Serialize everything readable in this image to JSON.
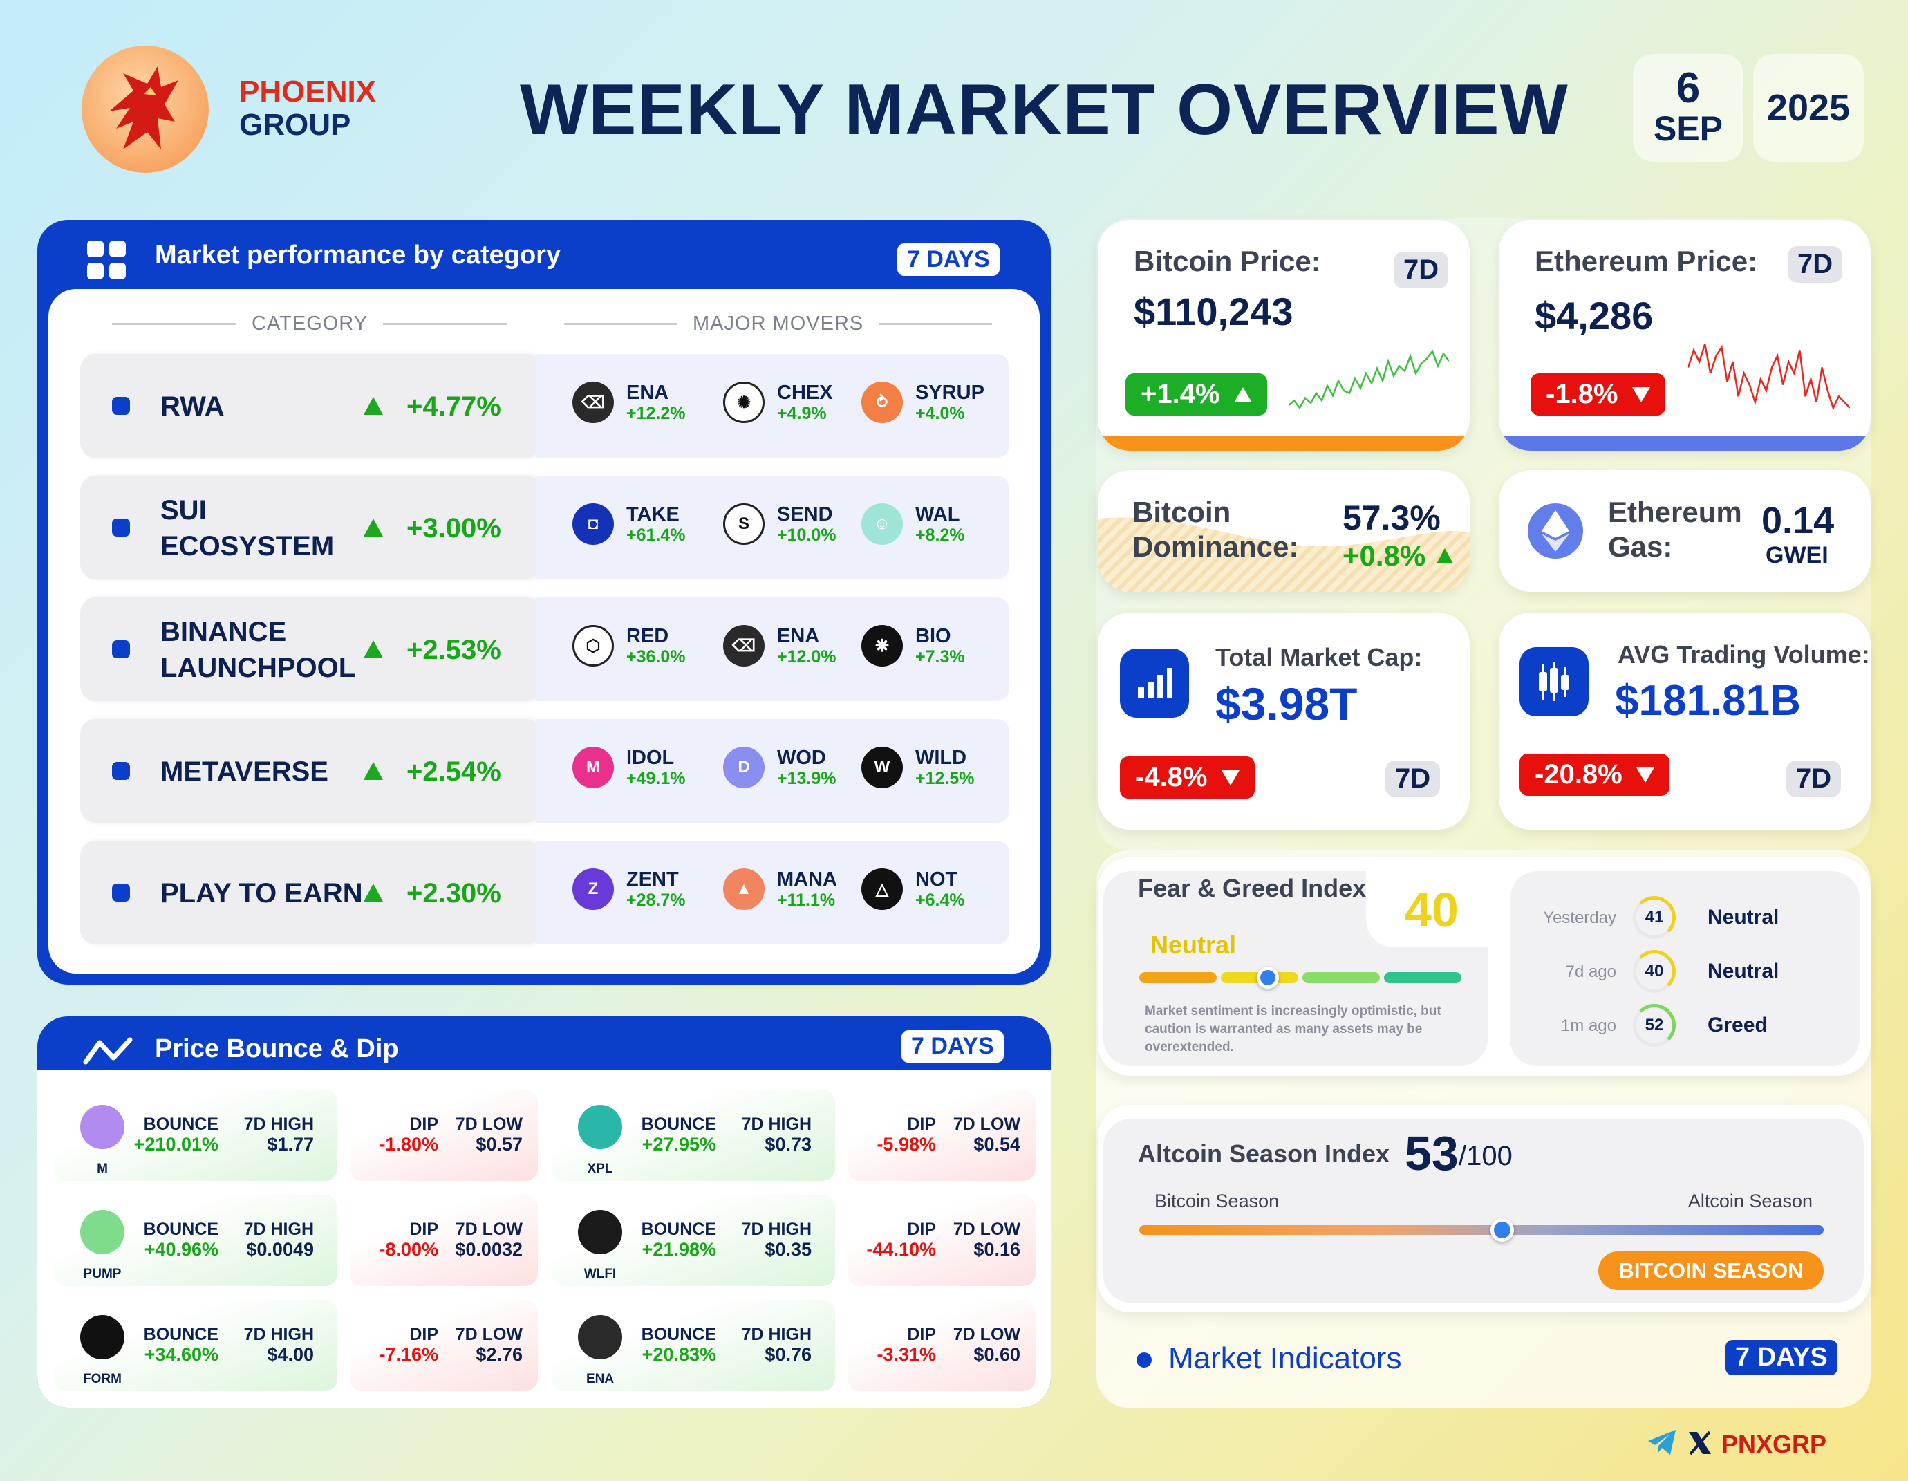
{
  "brand": {
    "line1": "PHOENIX",
    "line2": "GROUP"
  },
  "title": "WEEKLY MARKET OVERVIEW",
  "date": {
    "day": "6",
    "month": "SEP",
    "year": "2025"
  },
  "categories": {
    "title": "Market performance by category",
    "days": "7 DAYS",
    "col_category": "CATEGORY",
    "col_movers": "MAJOR MOVERS",
    "rows": [
      {
        "name": "RWA",
        "pct": "+4.77%",
        "movers": [
          {
            "sym": "ENA",
            "pct": "+12.2%",
            "color": "#2a2a2a",
            "glyph": "⌫"
          },
          {
            "sym": "CHEX",
            "pct": "+4.9%",
            "color": "#ffffff",
            "glyph": "✺"
          },
          {
            "sym": "SYRUP",
            "pct": "+4.0%",
            "color": "#f47f45",
            "glyph": "⥁"
          }
        ]
      },
      {
        "name": "SUI\nECOSYSTEM",
        "pct": "+3.00%",
        "movers": [
          {
            "sym": "TAKE",
            "pct": "+61.4%",
            "color": "#1432b8",
            "glyph": "◘"
          },
          {
            "sym": "SEND",
            "pct": "+10.0%",
            "color": "#ffffff",
            "glyph": "S"
          },
          {
            "sym": "WAL",
            "pct": "+8.2%",
            "color": "#9ee5d6",
            "glyph": "☺"
          }
        ]
      },
      {
        "name": "BINANCE\nLAUNCHPOOL",
        "pct": "+2.53%",
        "movers": [
          {
            "sym": "RED",
            "pct": "+36.0%",
            "color": "#ffffff",
            "glyph": "⬡"
          },
          {
            "sym": "ENA",
            "pct": "+12.0%",
            "color": "#2a2a2a",
            "glyph": "⌫"
          },
          {
            "sym": "BIO",
            "pct": "+7.3%",
            "color": "#111111",
            "glyph": "❋"
          }
        ]
      },
      {
        "name": "METAVERSE",
        "pct": "+2.54%",
        "movers": [
          {
            "sym": "IDOL",
            "pct": "+49.1%",
            "color": "#e8308c",
            "glyph": "M"
          },
          {
            "sym": "WOD",
            "pct": "+13.9%",
            "color": "#8a8ef0",
            "glyph": "D"
          },
          {
            "sym": "WILD",
            "pct": "+12.5%",
            "color": "#111111",
            "glyph": "W"
          }
        ]
      },
      {
        "name": "PLAY TO EARN",
        "pct": "+2.30%",
        "movers": [
          {
            "sym": "ZENT",
            "pct": "+28.7%",
            "color": "#6a3ad8",
            "glyph": "Z"
          },
          {
            "sym": "MANA",
            "pct": "+11.1%",
            "color": "#f08560",
            "glyph": "▲"
          },
          {
            "sym": "NOT",
            "pct": "+6.4%",
            "color": "#111111",
            "glyph": "△"
          }
        ]
      }
    ]
  },
  "bounce": {
    "title": "Price Bounce & Dip",
    "days": "7 DAYS",
    "labels": {
      "bounce": "BOUNCE",
      "high": "7D HIGH",
      "dip": "DIP",
      "low": "7D LOW"
    },
    "rows": [
      [
        {
          "sym": "M",
          "icon_color": "#b28bf0",
          "bounce": "+210.01%",
          "high": "$1.77",
          "dip": "-1.80%",
          "low": "$0.57"
        },
        {
          "sym": "XPL",
          "icon_color": "#2bb7a8",
          "bounce": "+27.95%",
          "high": "$0.73",
          "dip": "-5.98%",
          "low": "$0.54"
        }
      ],
      [
        {
          "sym": "PUMP",
          "icon_color": "#7fdc8c",
          "bounce": "+40.96%",
          "high": "$0.0049",
          "dip": "-8.00%",
          "low": "$0.0032"
        },
        {
          "sym": "WLFI",
          "icon_color": "#1b1b1b",
          "bounce": "+21.98%",
          "high": "$0.35",
          "dip": "-44.10%",
          "low": "$0.16"
        }
      ],
      [
        {
          "sym": "FORM",
          "icon_color": "#111111",
          "bounce": "+34.60%",
          "high": "$4.00",
          "dip": "-7.16%",
          "low": "$2.76"
        },
        {
          "sym": "ENA",
          "icon_color": "#2a2a2a",
          "bounce": "+20.83%",
          "high": "$0.76",
          "dip": "-3.31%",
          "low": "$0.60"
        }
      ]
    ]
  },
  "btc": {
    "label": "Bitcoin Price:",
    "tag": "7D",
    "price": "$110,243",
    "change": "+1.4%",
    "accent": "#f7931a",
    "spark": [
      4,
      6,
      3,
      7,
      5,
      9,
      6,
      12,
      8,
      14,
      10,
      9,
      15,
      11,
      17,
      13,
      19,
      14,
      22,
      16,
      20,
      18,
      24,
      17,
      21,
      23,
      26,
      20,
      25,
      22
    ]
  },
  "eth": {
    "label": "Ethereum Price:",
    "tag": "7D",
    "price": "$4,286",
    "change": "-1.8%",
    "accent": "#5b78e6",
    "spark": [
      20,
      26,
      22,
      28,
      18,
      24,
      27,
      15,
      22,
      10,
      18,
      14,
      8,
      16,
      12,
      20,
      24,
      14,
      22,
      18,
      26,
      10,
      16,
      8,
      20,
      12,
      6,
      10,
      8,
      6
    ]
  },
  "dominance": {
    "label1": "Bitcoin",
    "label2": "Dominance:",
    "value": "57.3%",
    "change": "+0.8%"
  },
  "gas": {
    "label1": "Ethereum",
    "label2": "Gas:",
    "value": "0.14",
    "unit": "GWEI"
  },
  "mcap": {
    "label": "Total Market Cap:",
    "value": "$3.98T",
    "change": "-4.8%",
    "tag": "7D"
  },
  "volume": {
    "label": "AVG Trading Volume:",
    "value": "$181.81B",
    "change": "-20.8%",
    "tag": "7D"
  },
  "fear": {
    "title": "Fear & Greed Index",
    "value": "40",
    "sentiment": "Neutral",
    "level": 0.4,
    "note": "Market sentiment is increasingly optimistic, but caution is warranted as many assets may be overextended.",
    "history": [
      {
        "when": "Yesterday",
        "value": "41",
        "label": "Neutral",
        "color": "#f0d21b"
      },
      {
        "when": "7d ago",
        "value": "40",
        "label": "Neutral",
        "color": "#f0d21b"
      },
      {
        "when": "1m ago",
        "value": "52",
        "label": "Greed",
        "color": "#7ad95b"
      }
    ]
  },
  "altseason": {
    "title": "Altcoin Season Index",
    "value": "53",
    "max": "/100",
    "left": "Bitcoin Season",
    "right": "Altcoin Season",
    "badge": "BITCOIN SEASON",
    "level": 0.53
  },
  "indicators": {
    "title": "Market Indicators",
    "days": "7 DAYS"
  },
  "footer": {
    "handle": "PNXGRP"
  }
}
